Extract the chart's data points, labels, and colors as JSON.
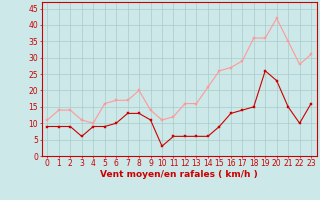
{
  "x": [
    0,
    1,
    2,
    3,
    4,
    5,
    6,
    7,
    8,
    9,
    10,
    11,
    12,
    13,
    14,
    15,
    16,
    17,
    18,
    19,
    20,
    21,
    22,
    23
  ],
  "wind_avg": [
    9,
    9,
    9,
    6,
    9,
    9,
    10,
    13,
    13,
    11,
    3,
    6,
    6,
    6,
    6,
    9,
    13,
    14,
    15,
    26,
    23,
    15,
    10,
    16
  ],
  "wind_gust": [
    11,
    14,
    14,
    11,
    10,
    16,
    17,
    17,
    20,
    14,
    11,
    12,
    16,
    16,
    21,
    26,
    27,
    29,
    36,
    36,
    42,
    35,
    28,
    31
  ],
  "bg_color": "#cce8e8",
  "grid_color": "#aacaca",
  "avg_color": "#cc0000",
  "gust_color": "#ff9999",
  "xlabel": "Vent moyen/en rafales ( km/h )",
  "ylabel_ticks": [
    0,
    5,
    10,
    15,
    20,
    25,
    30,
    35,
    40,
    45
  ],
  "xlim": [
    -0.5,
    23.5
  ],
  "ylim": [
    0,
    47
  ],
  "xlabel_color": "#cc0000",
  "tick_color": "#cc0000",
  "spine_color": "#cc0000",
  "axis_label_fontsize": 6.5,
  "tick_fontsize": 5.5
}
